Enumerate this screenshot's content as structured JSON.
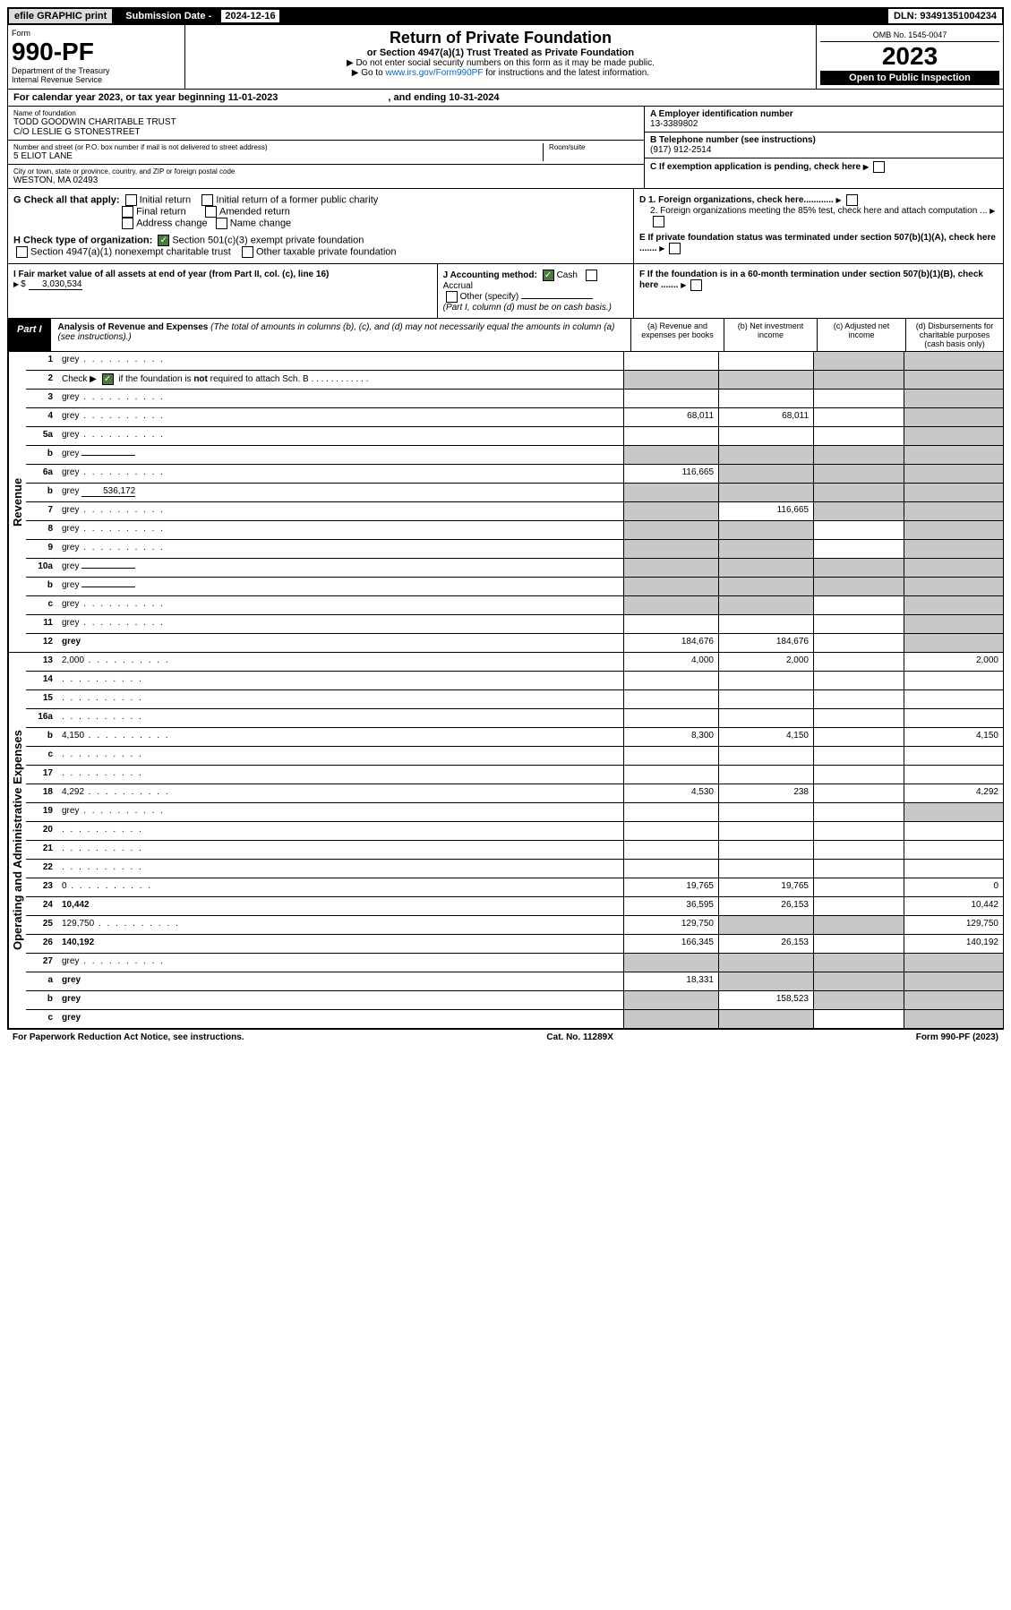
{
  "header": {
    "efile": "efile GRAPHIC print",
    "submission_label": "Submission Date - ",
    "submission_date": "2024-12-16",
    "dln": "DLN: 93491351004234"
  },
  "formtop": {
    "form_word": "Form",
    "form_no": "990-PF",
    "dept": "Department of the Treasury",
    "irs": "Internal Revenue Service",
    "title": "Return of Private Foundation",
    "subtitle": "or Section 4947(a)(1) Trust Treated as Private Foundation",
    "instr1": "▶ Do not enter social security numbers on this form as it may be made public.",
    "instr2_pre": "▶ Go to ",
    "instr2_link": "www.irs.gov/Form990PF",
    "instr2_post": " for instructions and the latest information.",
    "omb": "OMB No. 1545-0047",
    "year": "2023",
    "open": "Open to Public Inspection"
  },
  "calyear": {
    "pre": "For calendar year 2023, or tax year beginning ",
    "begin": "11-01-2023",
    "mid": " , and ending ",
    "end": "10-31-2024"
  },
  "entity": {
    "name_label": "Name of foundation",
    "name": "TODD GOODWIN CHARITABLE TRUST",
    "care_of": "C/O LESLIE G STONESTREET",
    "addr_label": "Number and street (or P.O. box number if mail is not delivered to street address)",
    "addr": "5 ELIOT LANE",
    "room_label": "Room/suite",
    "city_label": "City or town, state or province, country, and ZIP or foreign postal code",
    "city": "WESTON, MA  02493",
    "a_label": "A Employer identification number",
    "a_val": "13-3389802",
    "b_label": "B Telephone number (see instructions)",
    "b_val": "(917) 912-2514",
    "c_label": "C If exemption application is pending, check here",
    "d1": "D 1. Foreign organizations, check here............",
    "d2": "2. Foreign organizations meeting the 85% test, check here and attach computation ...",
    "e": "E  If private foundation status was terminated under section 507(b)(1)(A), check here .......",
    "f": "F  If the foundation is in a 60-month termination under section 507(b)(1)(B), check here .......",
    "g_label": "G Check all that apply:",
    "g_opts": [
      "Initial return",
      "Initial return of a former public charity",
      "Final return",
      "Amended return",
      "Address change",
      "Name change"
    ],
    "h_label": "H Check type of organization:",
    "h_opts": [
      "Section 501(c)(3) exempt private foundation",
      "Section 4947(a)(1) nonexempt charitable trust",
      "Other taxable private foundation"
    ],
    "i_label": "I Fair market value of all assets at end of year (from Part II, col. (c), line 16)",
    "i_val": "3,030,534",
    "j_label": "J Accounting method:",
    "j_cash": "Cash",
    "j_accrual": "Accrual",
    "j_other": "Other (specify)",
    "j_note": "(Part I, column (d) must be on cash basis.)"
  },
  "part1": {
    "label": "Part I",
    "title": "Analysis of Revenue and Expenses",
    "title_note": " (The total of amounts in columns (b), (c), and (d) may not necessarily equal the amounts in column (a) (see instructions).)",
    "col_a": "(a) Revenue and expenses per books",
    "col_b": "(b) Net investment income",
    "col_c": "(c) Adjusted net income",
    "col_d": "(d) Disbursements for charitable purposes (cash basis only)"
  },
  "side_labels": {
    "revenue": "Revenue",
    "expenses": "Operating and Administrative Expenses"
  },
  "rows": [
    {
      "n": "1",
      "d": "grey",
      "a": "",
      "b": "",
      "c": "grey"
    },
    {
      "n": "2",
      "d": "grey",
      "a": "grey",
      "b": "grey",
      "c": "grey",
      "checked": true
    },
    {
      "n": "3",
      "d": "grey",
      "a": "",
      "b": "",
      "c": ""
    },
    {
      "n": "4",
      "d": "grey",
      "a": "68,011",
      "b": "68,011",
      "c": ""
    },
    {
      "n": "5a",
      "d": "grey",
      "a": "",
      "b": "",
      "c": ""
    },
    {
      "n": "b",
      "d": "grey",
      "a": "grey",
      "b": "grey",
      "c": "grey",
      "inline": ""
    },
    {
      "n": "6a",
      "d": "grey",
      "a": "116,665",
      "b": "grey",
      "c": "grey"
    },
    {
      "n": "b",
      "d": "grey",
      "a": "grey",
      "b": "grey",
      "c": "grey",
      "inline": "536,172"
    },
    {
      "n": "7",
      "d": "grey",
      "a": "grey",
      "b": "116,665",
      "c": "grey"
    },
    {
      "n": "8",
      "d": "grey",
      "a": "grey",
      "b": "grey",
      "c": ""
    },
    {
      "n": "9",
      "d": "grey",
      "a": "grey",
      "b": "grey",
      "c": ""
    },
    {
      "n": "10a",
      "d": "grey",
      "a": "grey",
      "b": "grey",
      "c": "grey",
      "inline": ""
    },
    {
      "n": "b",
      "d": "grey",
      "a": "grey",
      "b": "grey",
      "c": "grey",
      "inline": ""
    },
    {
      "n": "c",
      "d": "grey",
      "a": "grey",
      "b": "grey",
      "c": ""
    },
    {
      "n": "11",
      "d": "grey",
      "a": "",
      "b": "",
      "c": ""
    },
    {
      "n": "12",
      "d": "grey",
      "a": "184,676",
      "b": "184,676",
      "c": "",
      "bold": true
    }
  ],
  "exp_rows": [
    {
      "n": "13",
      "d": "2,000",
      "a": "4,000",
      "b": "2,000",
      "c": ""
    },
    {
      "n": "14",
      "d": "",
      "a": "",
      "b": "",
      "c": ""
    },
    {
      "n": "15",
      "d": "",
      "a": "",
      "b": "",
      "c": ""
    },
    {
      "n": "16a",
      "d": "",
      "a": "",
      "b": "",
      "c": ""
    },
    {
      "n": "b",
      "d": "4,150",
      "a": "8,300",
      "b": "4,150",
      "c": ""
    },
    {
      "n": "c",
      "d": "",
      "a": "",
      "b": "",
      "c": ""
    },
    {
      "n": "17",
      "d": "",
      "a": "",
      "b": "",
      "c": ""
    },
    {
      "n": "18",
      "d": "4,292",
      "a": "4,530",
      "b": "238",
      "c": ""
    },
    {
      "n": "19",
      "d": "grey",
      "a": "",
      "b": "",
      "c": ""
    },
    {
      "n": "20",
      "d": "",
      "a": "",
      "b": "",
      "c": ""
    },
    {
      "n": "21",
      "d": "",
      "a": "",
      "b": "",
      "c": ""
    },
    {
      "n": "22",
      "d": "",
      "a": "",
      "b": "",
      "c": ""
    },
    {
      "n": "23",
      "d": "0",
      "a": "19,765",
      "b": "19,765",
      "c": ""
    },
    {
      "n": "24",
      "d": "10,442",
      "a": "36,595",
      "b": "26,153",
      "c": "",
      "bold": true
    },
    {
      "n": "25",
      "d": "129,750",
      "a": "129,750",
      "b": "grey",
      "c": "grey"
    },
    {
      "n": "26",
      "d": "140,192",
      "a": "166,345",
      "b": "26,153",
      "c": "",
      "bold": true
    },
    {
      "n": "27",
      "d": "grey",
      "a": "grey",
      "b": "grey",
      "c": "grey"
    },
    {
      "n": "a",
      "d": "grey",
      "a": "18,331",
      "b": "grey",
      "c": "grey",
      "bold": true
    },
    {
      "n": "b",
      "d": "grey",
      "a": "grey",
      "b": "158,523",
      "c": "grey",
      "bold": true
    },
    {
      "n": "c",
      "d": "grey",
      "a": "grey",
      "b": "grey",
      "c": "",
      "bold": true
    }
  ],
  "footer": {
    "left": "For Paperwork Reduction Act Notice, see instructions.",
    "mid": "Cat. No. 11289X",
    "right": "Form 990-PF (2023)"
  }
}
